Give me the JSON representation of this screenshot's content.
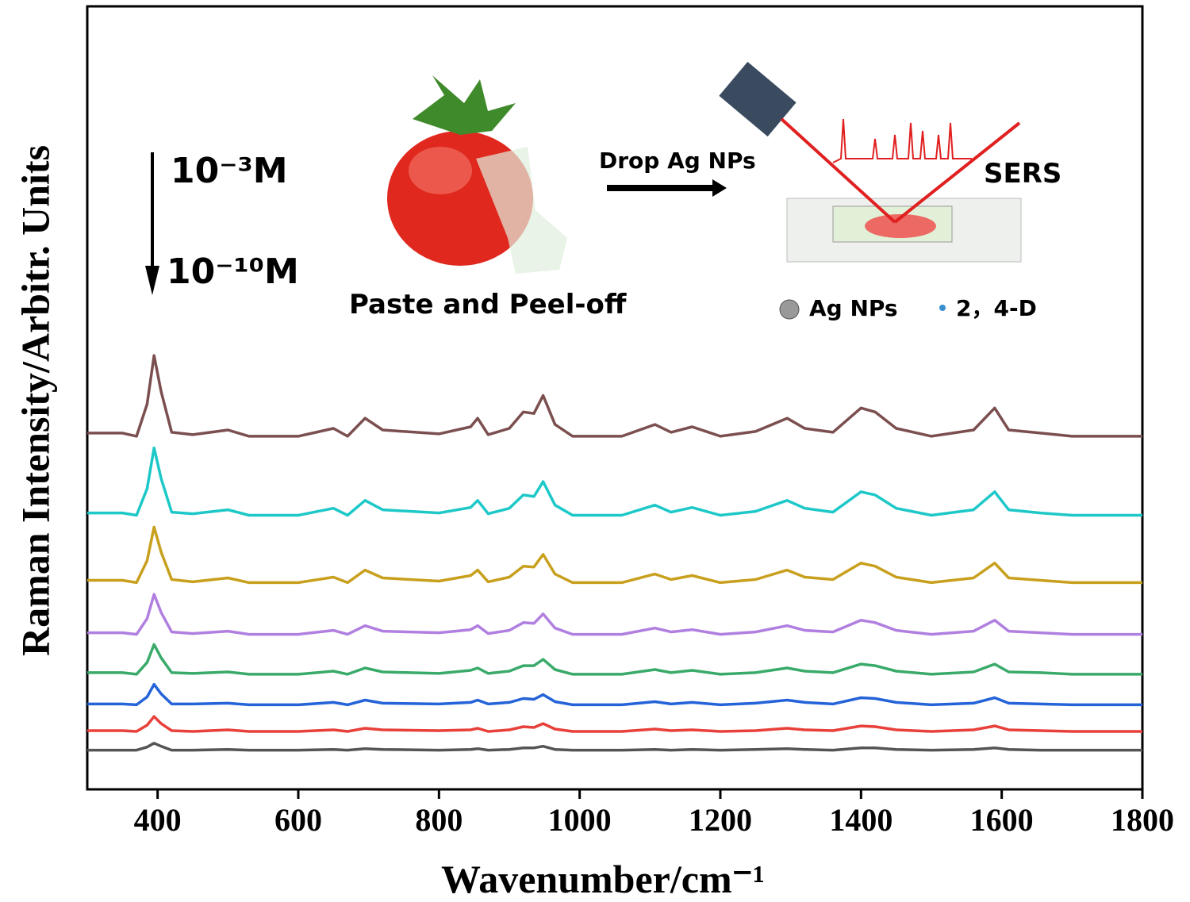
{
  "chart_data": {
    "type": "line",
    "xlabel": "Wavenumber/cm⁻¹",
    "ylabel": "Raman Intensity/Arbitr. Units",
    "annotations": [
      "10⁻³M",
      "10⁻¹⁰M",
      "Paste and Peel-off",
      "Drop Ag NPs",
      "SERS",
      "Ag NPs",
      "2，4-D"
    ],
    "xlim": [
      300,
      1800
    ],
    "xticks": [
      400,
      600,
      800,
      1000,
      1200,
      1400,
      1600,
      1800
    ],
    "ylim": [
      0,
      1000
    ],
    "x": [
      300,
      350,
      370,
      385,
      395,
      405,
      420,
      450,
      500,
      530,
      600,
      650,
      670,
      695,
      720,
      800,
      845,
      855,
      870,
      900,
      920,
      935,
      948,
      965,
      990,
      1060,
      1107,
      1130,
      1160,
      1200,
      1250,
      1295,
      1320,
      1360,
      1400,
      1420,
      1450,
      1500,
      1560,
      1590,
      1610,
      1655,
      1700,
      1800
    ],
    "series": [
      {
        "color": "#7b4f4f",
        "values": [
          455,
          455,
          451,
          492,
          554,
          508,
          456,
          453,
          459,
          451,
          451,
          461,
          451,
          474,
          459,
          454,
          463,
          474,
          453,
          461,
          482,
          480,
          503,
          466,
          451,
          451,
          466,
          456,
          463,
          451,
          457,
          474,
          461,
          456,
          487,
          482,
          461,
          451,
          459,
          487,
          459,
          455,
          451,
          451
        ]
      },
      {
        "color": "#1ec8c8",
        "values": [
          353,
          353,
          350,
          384,
          436,
          397,
          354,
          352,
          357,
          350,
          350,
          359,
          350,
          369,
          357,
          353,
          360,
          369,
          352,
          359,
          376,
          374,
          393,
          363,
          350,
          350,
          363,
          354,
          360,
          350,
          355,
          369,
          359,
          354,
          380,
          376,
          359,
          350,
          357,
          380,
          357,
          353,
          350,
          350
        ]
      },
      {
        "color": "#c8a01e",
        "values": [
          267,
          267,
          264,
          292,
          335,
          303,
          268,
          265,
          270,
          264,
          264,
          271,
          264,
          280,
          270,
          266,
          273,
          280,
          265,
          271,
          285,
          284,
          300,
          275,
          264,
          264,
          275,
          268,
          273,
          264,
          268,
          280,
          271,
          268,
          289,
          285,
          271,
          264,
          270,
          289,
          270,
          267,
          264,
          264
        ]
      },
      {
        "color": "#b07fe0",
        "values": [
          200,
          200,
          198,
          218,
          249,
          226,
          201,
          199,
          202,
          198,
          198,
          203,
          198,
          209,
          202,
          200,
          204,
          209,
          199,
          203,
          213,
          212,
          224,
          206,
          198,
          198,
          206,
          201,
          204,
          198,
          201,
          209,
          203,
          201,
          216,
          213,
          203,
          198,
          202,
          216,
          202,
          200,
          198,
          198
        ]
      },
      {
        "color": "#3aaa6a",
        "values": [
          149,
          149,
          147,
          162,
          185,
          168,
          149,
          148,
          150,
          147,
          147,
          151,
          147,
          155,
          150,
          148,
          152,
          155,
          148,
          151,
          158,
          158,
          166,
          153,
          147,
          147,
          153,
          149,
          152,
          147,
          149,
          155,
          151,
          149,
          160,
          158,
          151,
          147,
          150,
          160,
          150,
          149,
          147,
          147
        ]
      },
      {
        "color": "#2563d8",
        "values": [
          109,
          109,
          108,
          118,
          134,
          122,
          109,
          109,
          110,
          108,
          108,
          111,
          108,
          114,
          110,
          109,
          111,
          114,
          109,
          111,
          116,
          115,
          121,
          112,
          108,
          108,
          112,
          109,
          111,
          108,
          110,
          114,
          111,
          109,
          117,
          116,
          111,
          108,
          110,
          117,
          110,
          109,
          108,
          108
        ]
      },
      {
        "color": "#e8403a",
        "values": [
          75,
          75,
          74,
          82,
          93,
          84,
          75,
          74,
          76,
          74,
          74,
          76,
          74,
          78,
          76,
          75,
          76,
          78,
          74,
          76,
          80,
          79,
          84,
          77,
          74,
          74,
          77,
          75,
          76,
          74,
          75,
          78,
          76,
          75,
          81,
          80,
          76,
          74,
          76,
          81,
          76,
          75,
          74,
          74
        ]
      },
      {
        "color": "#555555",
        "values": [
          50,
          50,
          50,
          54,
          59,
          55,
          50,
          50,
          51,
          50,
          50,
          51,
          50,
          52,
          51,
          50,
          51,
          52,
          50,
          51,
          53,
          53,
          55,
          51,
          50,
          50,
          51,
          50,
          51,
          50,
          51,
          52,
          51,
          50,
          53,
          53,
          51,
          50,
          51,
          53,
          51,
          50,
          50,
          50
        ]
      }
    ]
  }
}
